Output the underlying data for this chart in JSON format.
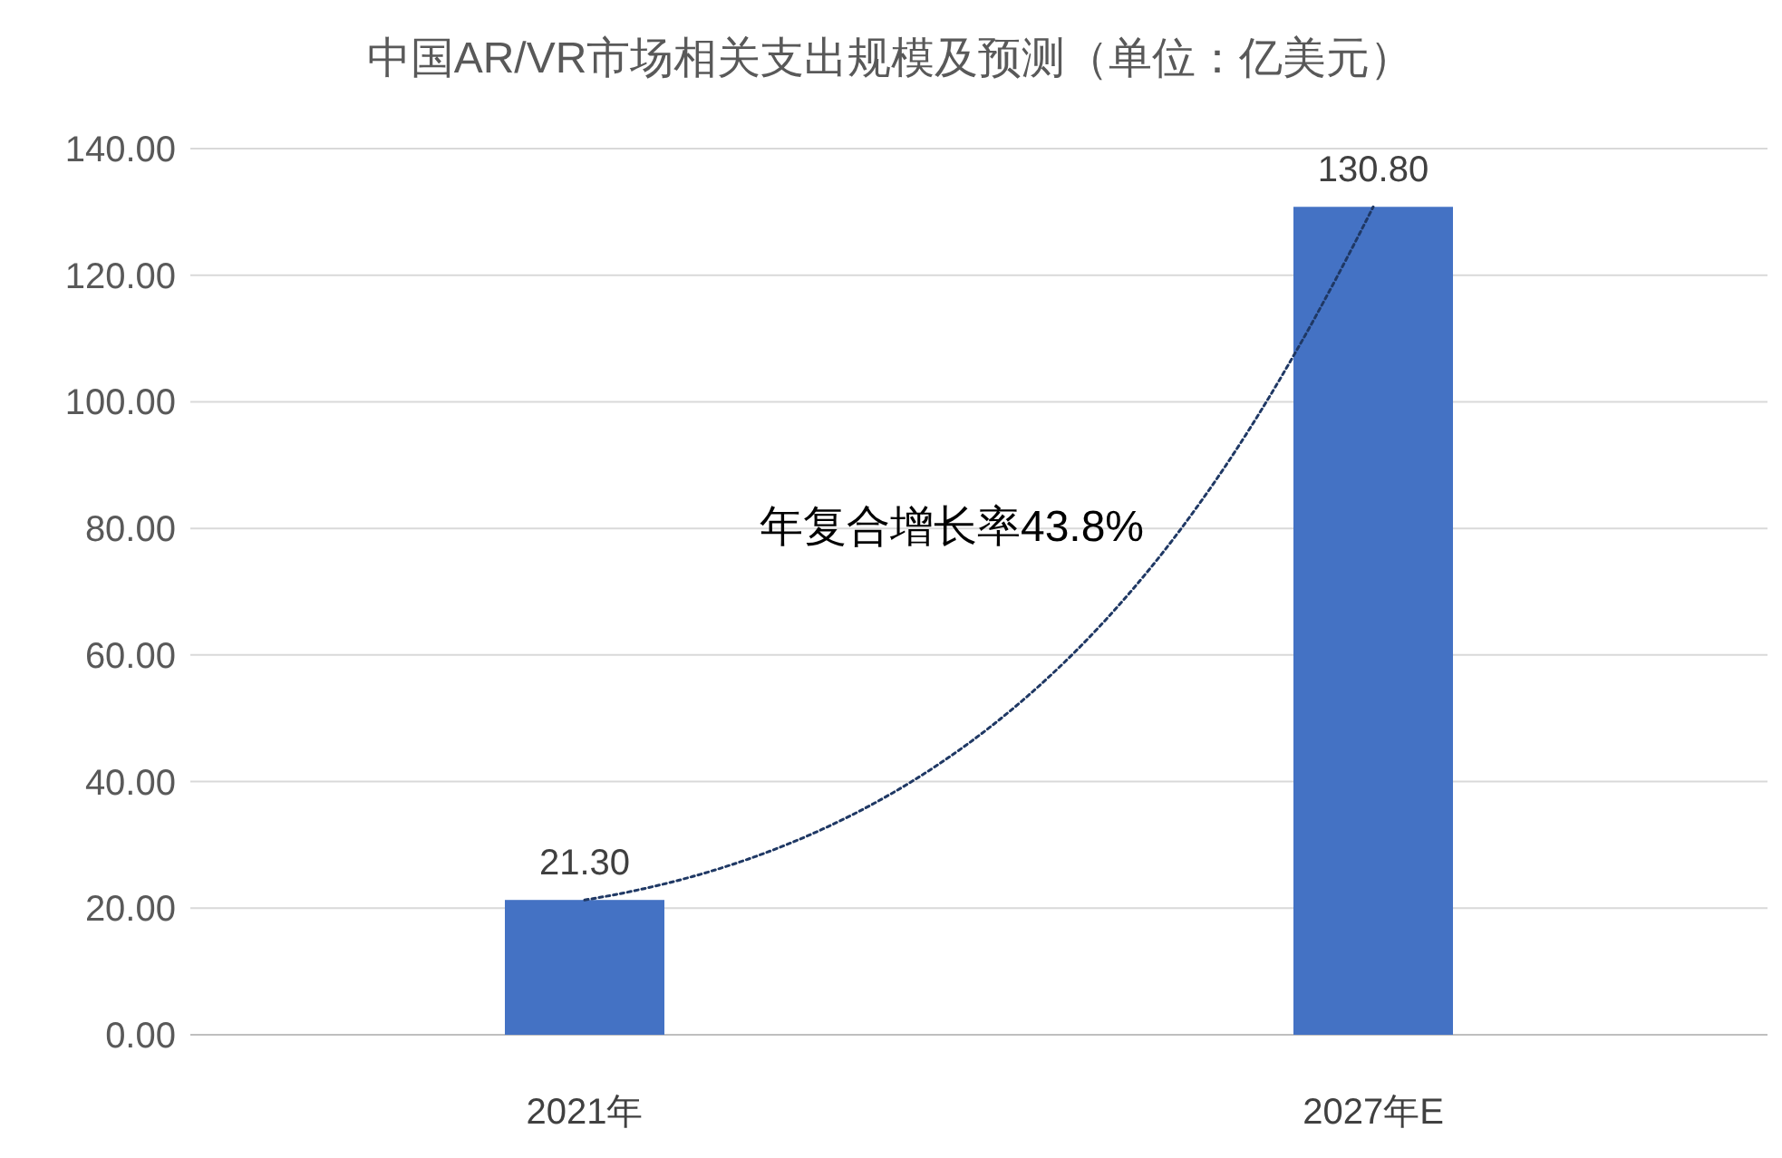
{
  "chart_data": {
    "type": "bar",
    "title": "中国AR/VR市场相关支出规模及预测（单位：亿美元）",
    "categories": [
      "2021年",
      "2027年E"
    ],
    "series": [
      {
        "color": "#4472c4",
        "values": [
          21.3,
          130.8
        ],
        "value_labels": [
          "21.30",
          "130.80"
        ]
      },
      {
        "type": "line",
        "color": "#1f3864",
        "line_style": "dotted",
        "values": [
          21.3,
          130.8
        ]
      }
    ],
    "ylim": [
      0,
      140
    ],
    "yticks": [
      {
        "value": 0,
        "label": "0.00"
      },
      {
        "value": 20,
        "label": "20.00"
      },
      {
        "value": 40,
        "label": "40.00"
      },
      {
        "value": 60,
        "label": "60.00"
      },
      {
        "value": 80,
        "label": "80.00"
      },
      {
        "value": 100,
        "label": "100.00"
      },
      {
        "value": 120,
        "label": "120.00"
      },
      {
        "value": 140,
        "label": "140.00"
      }
    ],
    "grid": "y",
    "annotations": [
      "年复合增长率43.8%"
    ]
  }
}
